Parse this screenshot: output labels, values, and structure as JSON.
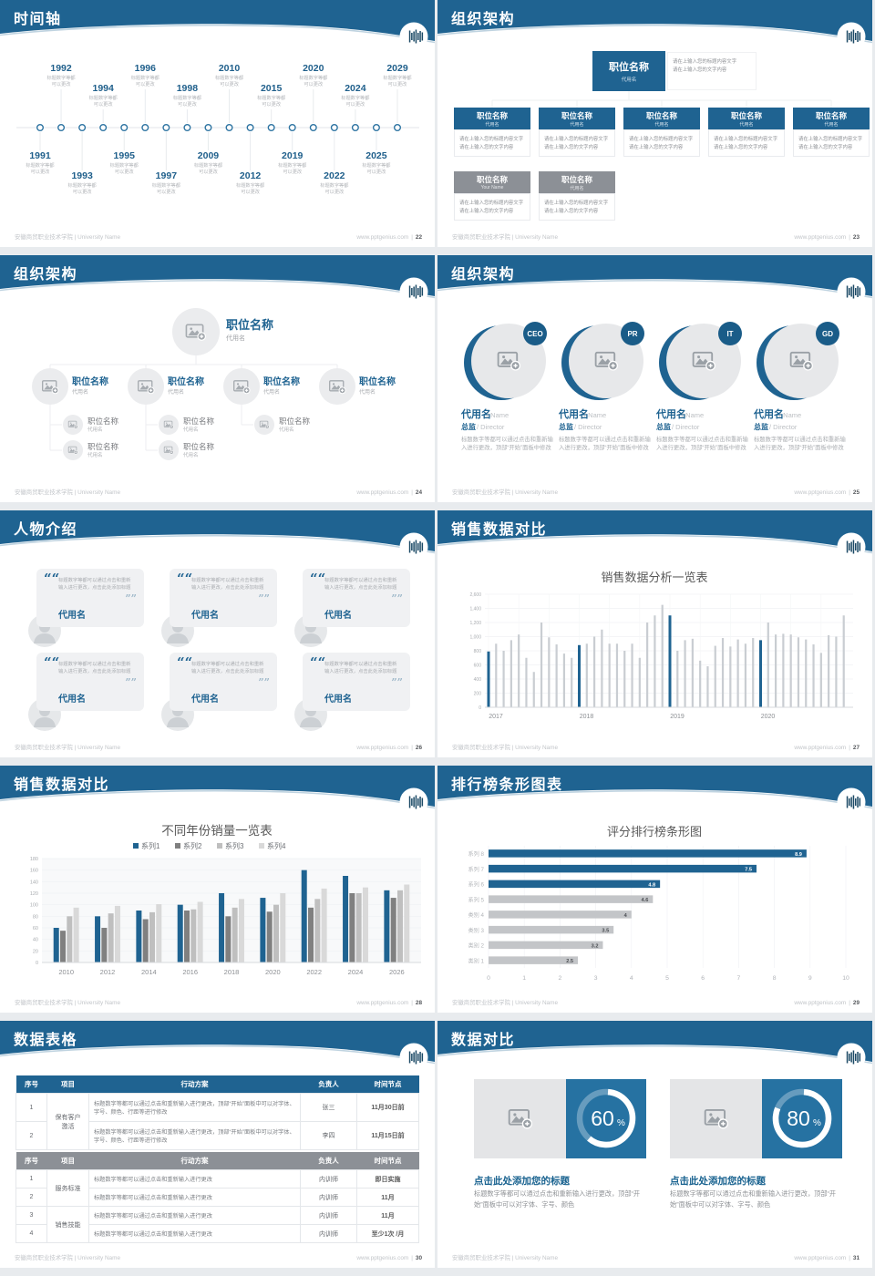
{
  "footer": {
    "left": "安徽商贸职业技术学院 | University Name",
    "site": "www.pptgenius.com",
    "divider": "|"
  },
  "slides": {
    "timeline": {
      "title": "时间轴",
      "page": "22",
      "caption_line1": "标题数字等都",
      "caption_line2": "可以更改",
      "top_years": [
        "1992",
        "1994",
        "1996",
        "1998",
        "2010",
        "2015",
        "2020",
        "2024",
        "2029"
      ],
      "bottom_years": [
        "1991",
        "1993",
        "1995",
        "1997",
        "2009",
        "2012",
        "2019",
        "2022",
        "2025"
      ]
    },
    "org_boxes": {
      "title": "组织架构",
      "page": "23",
      "root": {
        "title": "职位名称",
        "sub": "代用名"
      },
      "note_line1": "请在上输入您的标题内容文字",
      "note_line2": "请在上输入您的文字内容",
      "blue_children": [
        {
          "title": "职位名称",
          "sub": "代用名"
        },
        {
          "title": "职位名称",
          "sub": "代用名"
        },
        {
          "title": "职位名称",
          "sub": "代用名"
        },
        {
          "title": "职位名称",
          "sub": "代用名"
        },
        {
          "title": "职位名称",
          "sub": "代用名"
        }
      ],
      "gray_children": [
        {
          "title": "职位名称",
          "sub": "Your Name"
        },
        {
          "title": "职位名称",
          "sub": "代用名"
        }
      ]
    },
    "org_tree": {
      "title": "组织架构",
      "page": "24",
      "node_title": "职位名称",
      "node_sub": "代用名",
      "level2_count": 4,
      "level3_counts": [
        2,
        2,
        1,
        0
      ]
    },
    "org_people": {
      "title": "组织架构",
      "page": "25",
      "badges": [
        "CEO",
        "PR",
        "IT",
        "GD"
      ],
      "name": "代用名",
      "name_en": "Name",
      "role": "总监",
      "role_en": "Director",
      "body": "标题数字等都可以通过点击和重新输入进行更改，顶部“开始”面板中修改"
    },
    "people": {
      "title": "人物介绍",
      "page": "26",
      "cards": 6,
      "name": "代用名",
      "quote": "标题数字等都可以通过点击和重新输入进行更改，点击此处添加标题"
    },
    "sales_dense": {
      "title": "销售数据对比",
      "page": "27"
    },
    "sales_grouped": {
      "title": "销售数据对比",
      "page": "28"
    },
    "ranking": {
      "title": "排行榜条形图表",
      "page": "29"
    },
    "tables": {
      "title": "数据表格",
      "page": "30",
      "headers": [
        "序号",
        "项目",
        "行动方案",
        "负责人",
        "时间节点"
      ],
      "table1": {
        "group": "保有客户激活",
        "action": "标题数字等都可以通过点击和重新输入进行更改，顶部“开始”面板中可以对字体、字号、颜色、行距等进行修改",
        "rows": [
          {
            "no": "1",
            "owner": "张三",
            "deadline": "11月30日前"
          },
          {
            "no": "2",
            "owner": "李四",
            "deadline": "11月15日前"
          }
        ]
      },
      "table2": {
        "groups": [
          {
            "label": "服务标准",
            "span": 2
          },
          {
            "label": "销售技能",
            "span": 2
          }
        ],
        "action": "标题数字等都可以通过点击和重新输入进行更改",
        "rows": [
          {
            "no": "1",
            "owner": "内训师",
            "deadline": "即日实施"
          },
          {
            "no": "2",
            "owner": "内训师",
            "deadline": "11月"
          },
          {
            "no": "3",
            "owner": "内训师",
            "deadline": "11月"
          },
          {
            "no": "4",
            "owner": "内训师",
            "deadline": "至少1次 /月"
          }
        ]
      }
    },
    "compare": {
      "title": "数据对比",
      "page": "31",
      "items": [
        {
          "percent": 60,
          "unit": "%",
          "title": "点击此处添加您的标题",
          "body": "标题数字等都可以通过点击和重新输入进行更改，顶部“开始”面板中可以对字体、字号、颜色"
        },
        {
          "percent": 80,
          "unit": "%",
          "title": "点击此处添加您的标题",
          "body": "标题数字等都可以通过点击和重新输入进行更改，顶部“开始”面板中可以对字体、字号、颜色"
        }
      ]
    }
  },
  "chart_data": [
    {
      "type": "bar",
      "title": "销售数据分析一览表",
      "x_group_labels": [
        "2017",
        "2018",
        "2019",
        "2020"
      ],
      "highlight_indices": [
        0,
        12,
        24,
        36
      ],
      "values": [
        790,
        900,
        800,
        950,
        1030,
        700,
        500,
        1200,
        990,
        890,
        760,
        700,
        880,
        900,
        1000,
        1100,
        900,
        900,
        800,
        900,
        700,
        1200,
        1300,
        1450,
        1300,
        800,
        950,
        970,
        660,
        580,
        870,
        980,
        860,
        960,
        900,
        980,
        950,
        1200,
        1030,
        1040,
        1030,
        990,
        960,
        890,
        770,
        1020,
        1000,
        1300
      ],
      "ylim": [
        0,
        1600
      ],
      "ytick_step": 200,
      "grid": true,
      "bar_color": "#c9cdd2",
      "highlight_color": "#1f6391"
    },
    {
      "type": "bar",
      "title": "不同年份销量一览表",
      "categories": [
        "2010",
        "2012",
        "2014",
        "2016",
        "2018",
        "2020",
        "2022",
        "2024",
        "2026"
      ],
      "series": [
        {
          "name": "系列1",
          "color": "#1f6391",
          "values": [
            60,
            80,
            90,
            100,
            120,
            112,
            160,
            150,
            125
          ]
        },
        {
          "name": "系列2",
          "color": "#808080",
          "values": [
            55,
            60,
            75,
            90,
            80,
            88,
            95,
            120,
            112
          ]
        },
        {
          "name": "系列3",
          "color": "#bfbfbf",
          "values": [
            80,
            85,
            87,
            92,
            95,
            100,
            110,
            120,
            125
          ]
        },
        {
          "name": "系列4",
          "color": "#d9d9d9",
          "values": [
            95,
            98,
            101,
            105,
            110,
            120,
            128,
            130,
            135
          ]
        }
      ],
      "ylim": [
        0,
        180
      ],
      "ytick_step": 20,
      "legend_position": "top",
      "grid": true
    },
    {
      "type": "bar",
      "orientation": "horizontal",
      "title": "评分排行榜条形图",
      "categories": [
        "系列 8",
        "系列 7",
        "系列 6",
        "系列 5",
        "类别 4",
        "类别 3",
        "类别 2",
        "类别 1"
      ],
      "values": [
        8.9,
        7.5,
        4.8,
        4.6,
        4,
        3.5,
        3.2,
        2.5
      ],
      "bar_colors": [
        "#1f6391",
        "#1f6391",
        "#1f6391",
        "#c3c5c8",
        "#c3c5c8",
        "#c3c5c8",
        "#c3c5c8",
        "#c3c5c8"
      ],
      "xlim": [
        0,
        10
      ],
      "xtick_step": 1,
      "grid": true
    },
    {
      "type": "pie",
      "variant": "donut",
      "unit": "%",
      "series": [
        {
          "label": "点击此处添加您的标题",
          "value": 60
        },
        {
          "label": "点击此处添加您的标题",
          "value": 80
        }
      ]
    }
  ]
}
